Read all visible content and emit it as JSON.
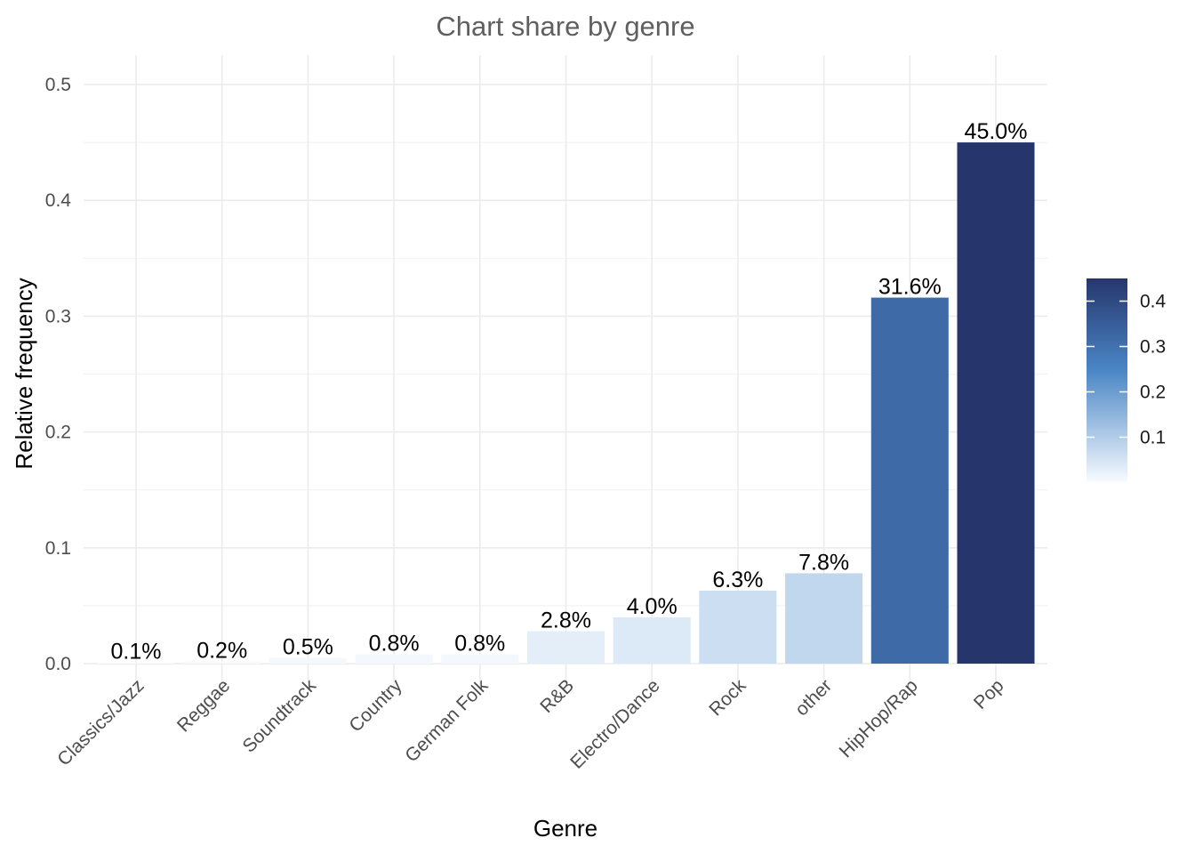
{
  "chart_data": {
    "type": "bar",
    "title": "Chart share by genre",
    "xlabel": "Genre",
    "ylabel": "Relative frequency",
    "categories": [
      "Classics/Jazz",
      "Reggae",
      "Soundtrack",
      "Country",
      "German Folk",
      "R&B",
      "Electro/Dance",
      "Rock",
      "other",
      "HipHop/Rap",
      "Pop"
    ],
    "values": [
      0.001,
      0.002,
      0.005,
      0.008,
      0.008,
      0.028,
      0.04,
      0.063,
      0.078,
      0.316,
      0.45
    ],
    "data_labels": [
      "0.1%",
      "0.2%",
      "0.5%",
      "0.8%",
      "0.8%",
      "2.8%",
      "4.0%",
      "6.3%",
      "7.8%",
      "31.6%",
      "45.0%"
    ],
    "ylim": [
      0,
      0.5
    ],
    "yticks": [
      "0.0",
      "0.1",
      "0.2",
      "0.3",
      "0.4",
      "0.5"
    ],
    "grid": true,
    "fill_scale": {
      "low_color": "#f7fbff",
      "mid_color": "#4a86c6",
      "high_color": "#26366c",
      "range": [
        0.001,
        0.45
      ]
    },
    "legend": {
      "placement": "right",
      "ticks": [
        "0.1",
        "0.2",
        "0.3",
        "0.4"
      ]
    }
  }
}
